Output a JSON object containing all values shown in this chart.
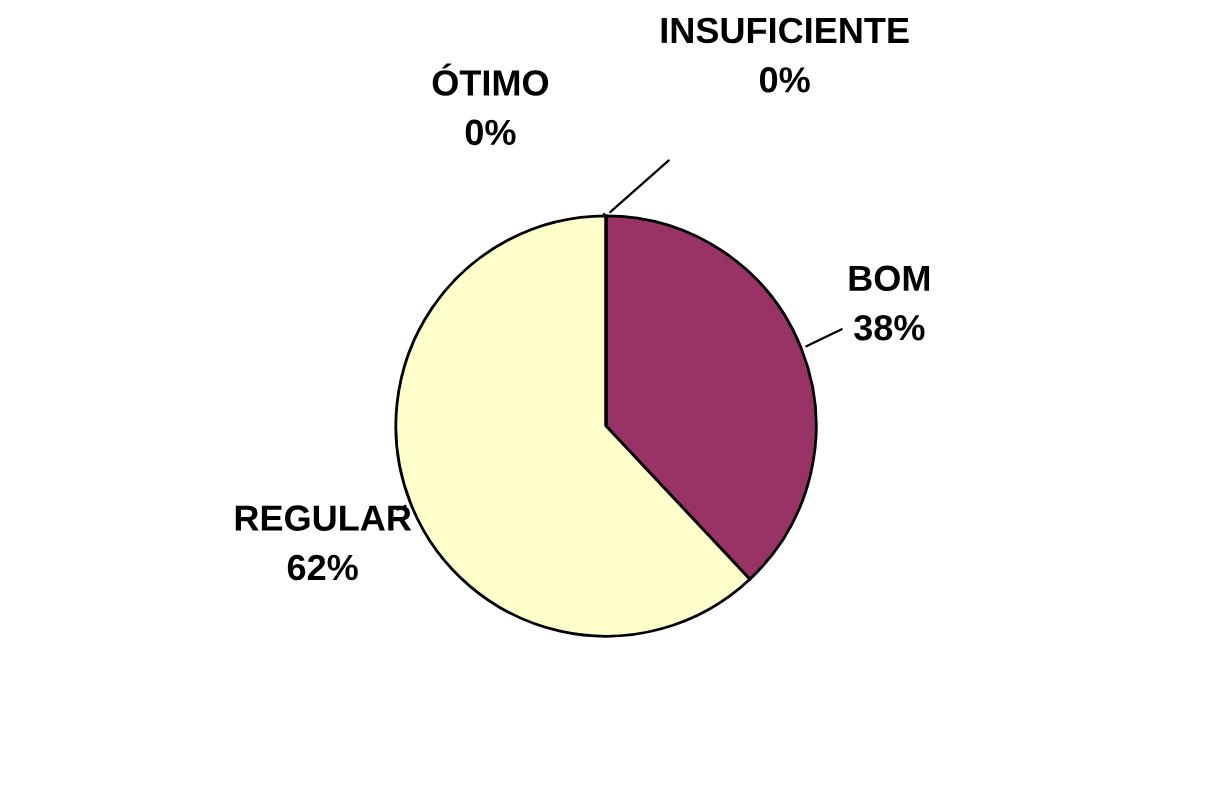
{
  "chart_data": {
    "type": "pie",
    "categories": [
      "BOM",
      "REGULAR",
      "ÓTIMO",
      "INSUFICIENTE"
    ],
    "values": [
      38,
      62,
      0,
      0
    ],
    "colors": [
      "#993366",
      "#ffffcc",
      "#9999ff",
      "#ccffff"
    ],
    "value_labels": [
      "38%",
      "62%",
      "0%",
      "0%"
    ]
  }
}
